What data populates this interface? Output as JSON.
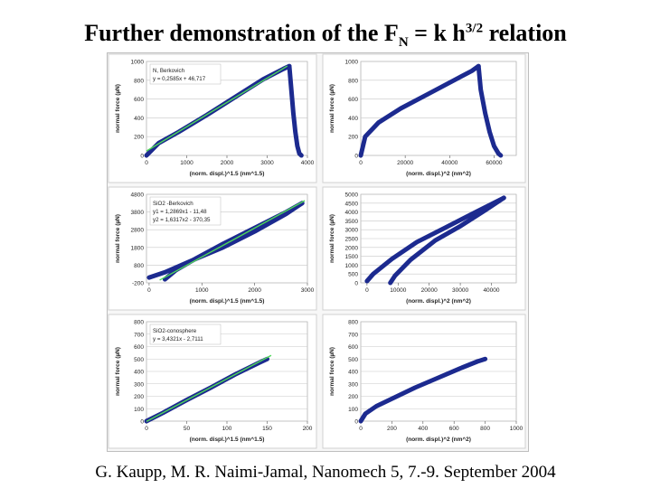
{
  "title": {
    "text": "Further demonstration of the F",
    "sub": "N",
    "mid": " = k h",
    "sup": "3/2",
    "end": " relation"
  },
  "footer": "G. Kaupp, M. R. Naimi-Jamal, Nanomech 5, 7.-9. September 2004",
  "colors": {
    "data": "#1c2a8f",
    "fit": "#4fd65a",
    "grid": "#c8c8c8"
  },
  "chart_data": [
    {
      "type": "scatter",
      "ylabel": "normal force (µN)",
      "xlabel": "(norm. displ.)^1.5 (nm^1.5)",
      "xlim": [
        0,
        4000
      ],
      "ylim": [
        0,
        1000
      ],
      "xticks": [
        "0",
        "1000",
        "2000",
        "3000",
        "4000"
      ],
      "yticks": [
        "0",
        "200",
        "400",
        "600",
        "800",
        "1000"
      ],
      "legend": [
        "N, Berkovich",
        "y = 0,2585x + 46,717"
      ],
      "fit": {
        "slope": 0.2585,
        "intercept": 46.717,
        "x": [
          0,
          3500
        ]
      },
      "series": [
        {
          "x": [
            0,
            300,
            800,
            1500,
            2200,
            2900,
            3400,
            3550
          ],
          "y": [
            0,
            130,
            250,
            430,
            620,
            810,
            920,
            950
          ]
        },
        {
          "x": [
            3550,
            3600,
            3650,
            3700,
            3750,
            3800,
            3850
          ],
          "y": [
            950,
            700,
            450,
            250,
            100,
            20,
            0
          ]
        }
      ]
    },
    {
      "type": "scatter",
      "ylabel": "normal force (µN)",
      "xlabel": "(norm. displ.)^2 (nm^2)",
      "xlim": [
        0,
        70000
      ],
      "ylim": [
        0,
        1000
      ],
      "xticks": [
        "0",
        "20000",
        "40000",
        "60000"
      ],
      "yticks": [
        "0",
        "200",
        "400",
        "600",
        "800",
        "1000"
      ],
      "series": [
        {
          "x": [
            0,
            2000,
            8000,
            18000,
            30000,
            42000,
            50000,
            53000
          ],
          "y": [
            0,
            200,
            350,
            500,
            650,
            800,
            900,
            950
          ]
        },
        {
          "x": [
            53000,
            54000,
            56000,
            58000,
            60000,
            62000,
            63000
          ],
          "y": [
            950,
            700,
            450,
            250,
            100,
            20,
            0
          ]
        }
      ]
    },
    {
      "type": "scatter",
      "ylabel": "normal force (µN)",
      "xlabel": "(norm. displ.)^1.5 (nm^1.5)",
      "xlim": [
        -50,
        3000
      ],
      "ylim": [
        -200,
        4800
      ],
      "xticks": [
        "0",
        "1000",
        "2000",
        "3000"
      ],
      "yticks": [
        "-200",
        "800",
        "1800",
        "2800",
        "3800",
        "4800"
      ],
      "legend": [
        "SiO2 -Berkovich",
        "y1 = 1,2869x1 - 11,48",
        "y2 = 1,6317x2 - 370,35"
      ],
      "fit": {
        "slope": 1.6317,
        "intercept": -370.35,
        "x": [
          200,
          2950
        ]
      },
      "series": [
        {
          "x": [
            0,
            300,
            800,
            1400,
            2000,
            2600,
            2900
          ],
          "y": [
            100,
            400,
            1050,
            1800,
            2700,
            3700,
            4300
          ]
        },
        {
          "x": [
            2900,
            2600,
            2000,
            1400,
            900,
            500,
            300
          ],
          "y": [
            4300,
            3800,
            2900,
            2000,
            1200,
            500,
            0
          ]
        }
      ]
    },
    {
      "type": "scatter",
      "ylabel": "normal force (µN)",
      "xlabel": "(norm. displ.)^2 (nm^2)",
      "xlim": [
        -2000,
        48000
      ],
      "ylim": [
        0,
        5000
      ],
      "xticks": [
        "0",
        "10000",
        "20000",
        "30000",
        "40000"
      ],
      "yticks": [
        "0",
        "500",
        "1000",
        "1500",
        "2000",
        "2500",
        "3000",
        "3500",
        "4000",
        "4500",
        "5000"
      ],
      "series": [
        {
          "x": [
            0,
            2000,
            8000,
            16000,
            25000,
            35000,
            44000
          ],
          "y": [
            100,
            500,
            1350,
            2300,
            3100,
            4000,
            4800
          ]
        },
        {
          "x": [
            44000,
            38000,
            30000,
            22000,
            14000,
            9000,
            7500
          ],
          "y": [
            4800,
            4100,
            3200,
            2400,
            1300,
            400,
            0
          ]
        }
      ]
    },
    {
      "type": "scatter",
      "ylabel": "normal force (µN)",
      "xlabel": "(norm. displ.)^1.5 (nm^1.5)",
      "xlim": [
        0,
        200
      ],
      "ylim": [
        0,
        800
      ],
      "xticks": [
        "0",
        "50",
        "100",
        "150",
        "200"
      ],
      "yticks": [
        "0",
        "100",
        "200",
        "300",
        "400",
        "500",
        "600",
        "700",
        "800"
      ],
      "legend": [
        "SiO2-conosphere",
        "y = 3,4321x - 2,7111"
      ],
      "fit": {
        "slope": 3.4321,
        "intercept": -2.7111,
        "x": [
          0,
          155
        ]
      },
      "series": [
        {
          "x": [
            0,
            20,
            50,
            80,
            110,
            140,
            150
          ],
          "y": [
            0,
            65,
            170,
            270,
            375,
            470,
            500
          ]
        }
      ]
    },
    {
      "type": "scatter",
      "ylabel": "normal force (µN)",
      "xlabel": "(norm. displ.)^2 (nm^2)",
      "xlim": [
        0,
        1000
      ],
      "ylim": [
        0,
        800
      ],
      "xticks": [
        "0",
        "200",
        "400",
        "600",
        "800",
        "1000"
      ],
      "yticks": [
        "0",
        "100",
        "200",
        "300",
        "400",
        "500",
        "600",
        "700",
        "800"
      ],
      "series": [
        {
          "x": [
            0,
            30,
            100,
            200,
            350,
            500,
            650,
            750,
            800
          ],
          "y": [
            0,
            60,
            120,
            180,
            270,
            350,
            430,
            480,
            500
          ]
        }
      ]
    }
  ]
}
